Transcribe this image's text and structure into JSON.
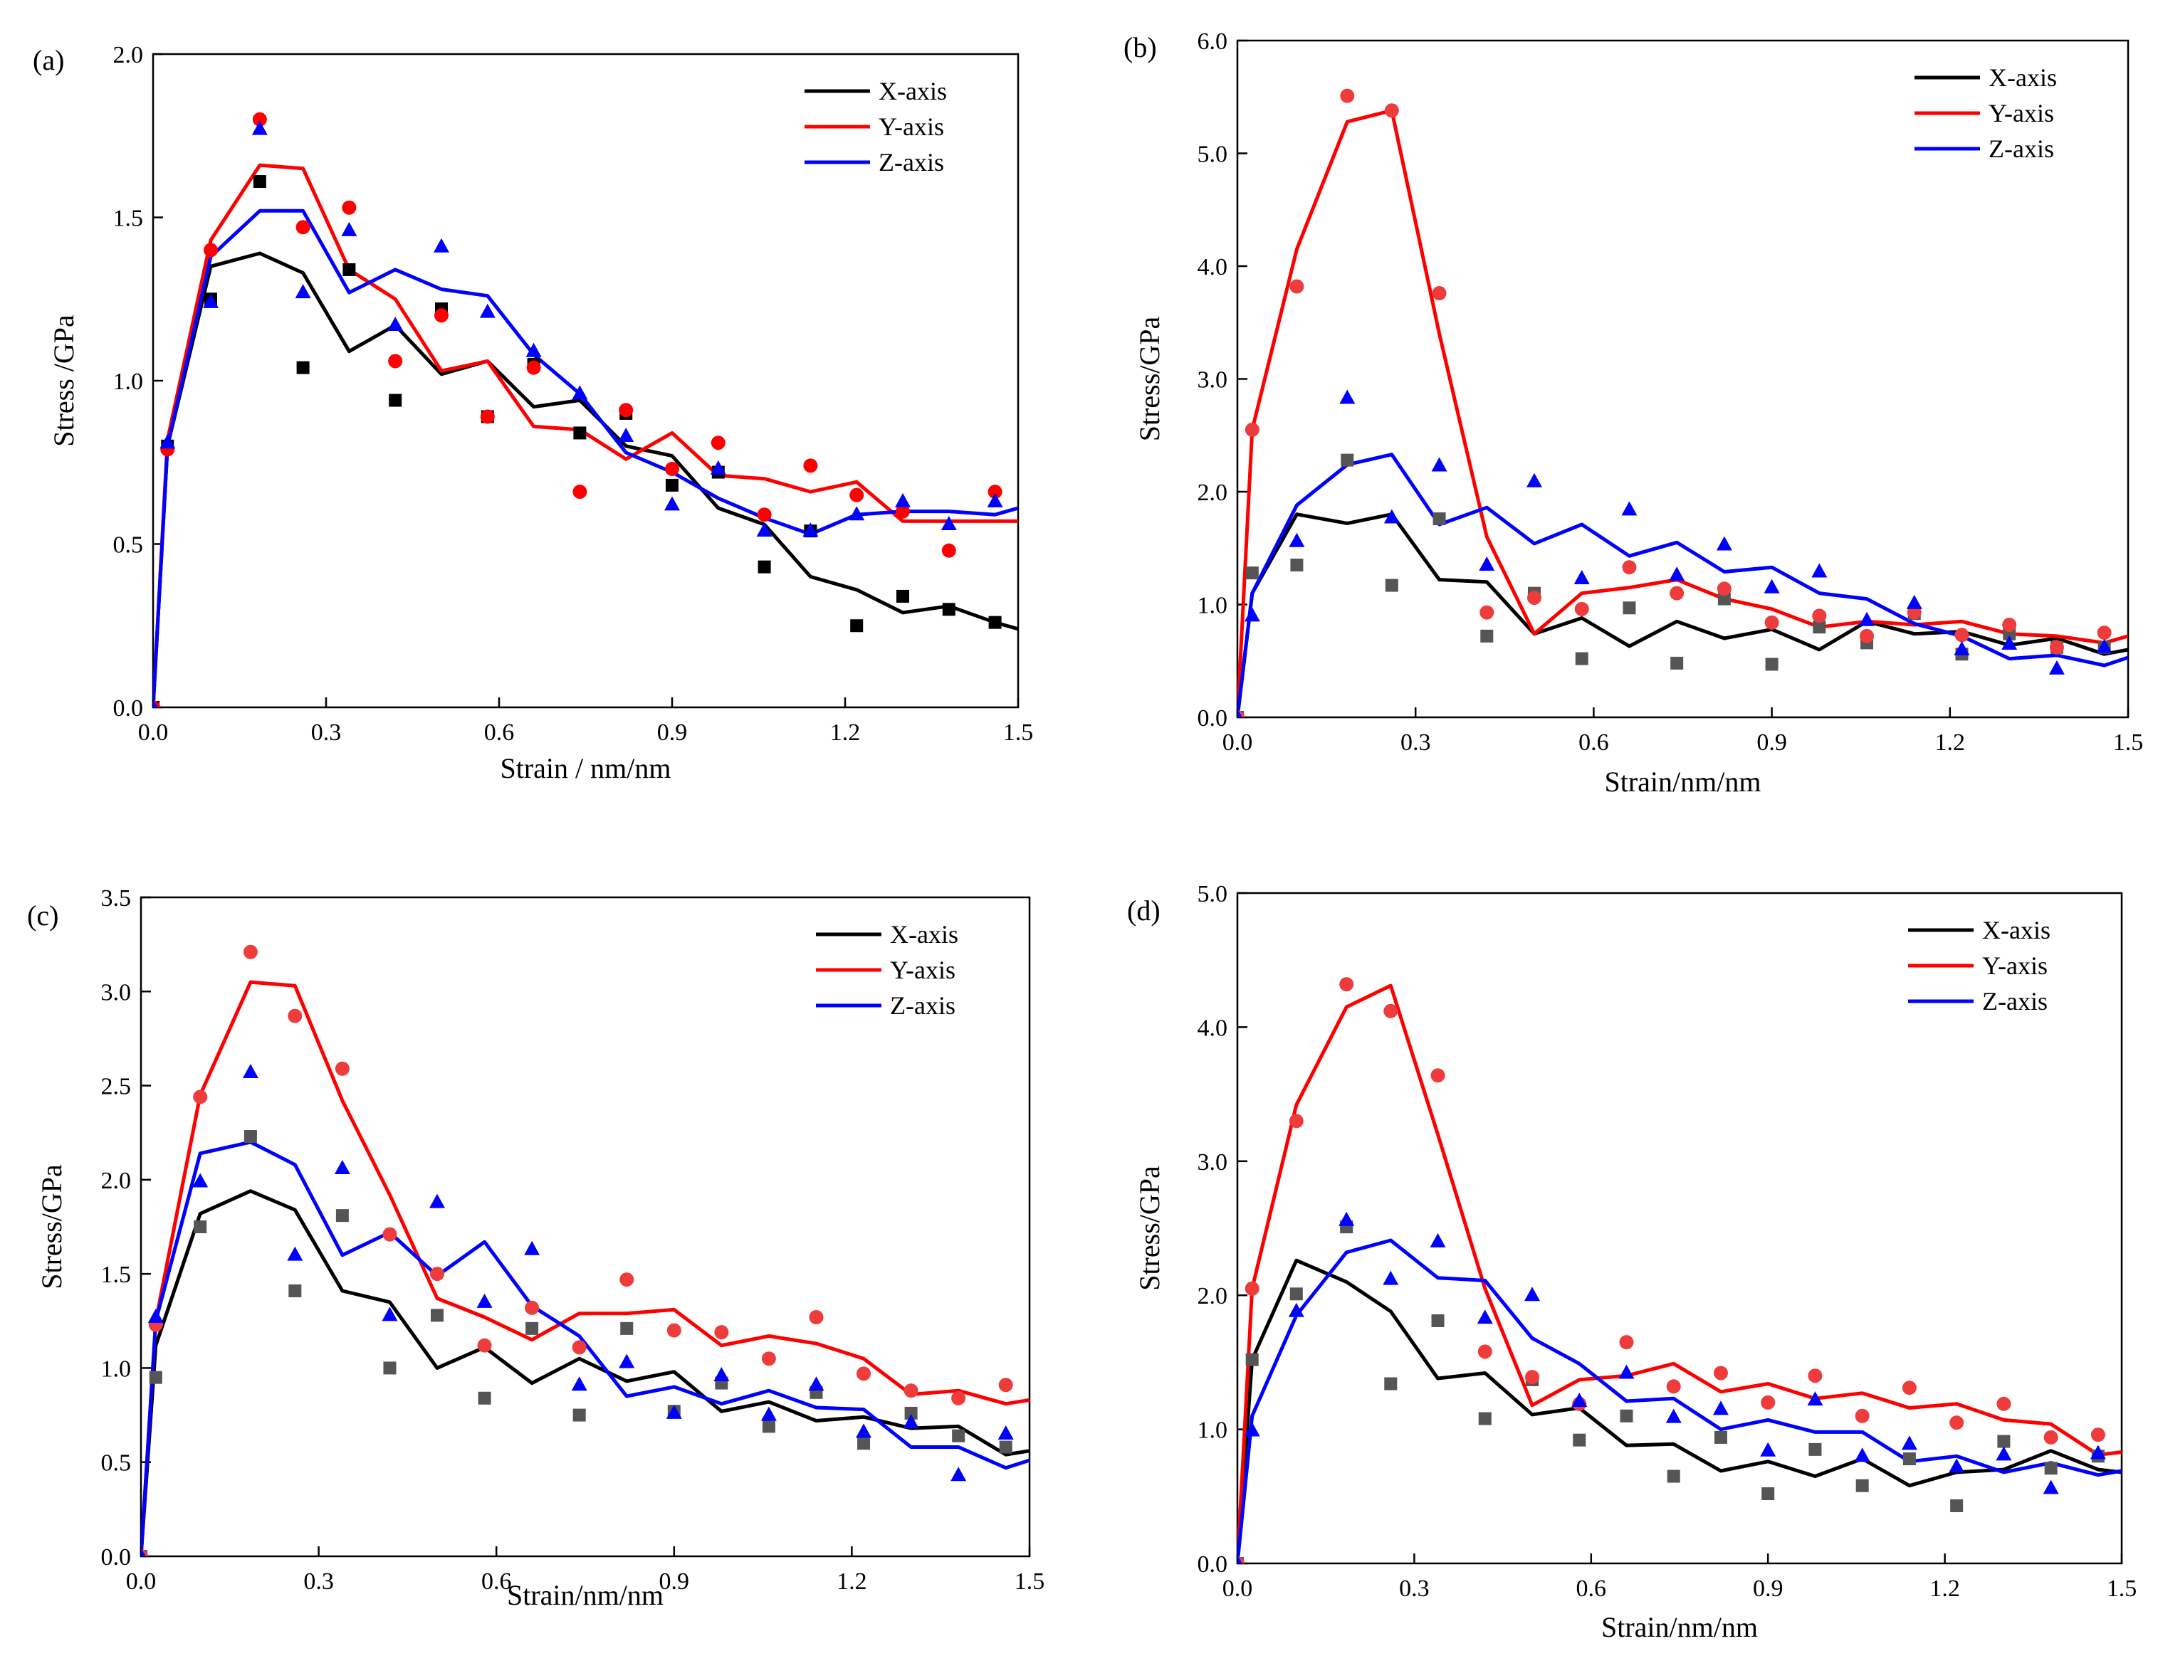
{
  "figure": {
    "series_colors": {
      "X-axis": "#000000",
      "Y-axis": "#ff0000",
      "Z-axis": "#0000ff"
    },
    "marker_colors": {
      "X-axis": "#000000",
      "Y-axis": "#ff0000",
      "Z-axis": "#0000ff"
    },
    "marker_colors_muted": {
      "X-axis": "#555555",
      "Y-axis": "#ee3b3b",
      "Z-axis": "#0000ff"
    }
  },
  "chart_data": [
    {
      "type": "line",
      "panel_label": "(a)",
      "title": "",
      "xlabel": "Strain / nm/nm",
      "ylabel": "Stress /GPa",
      "xlim": [
        0,
        1.5
      ],
      "ylim": [
        0,
        2.0
      ],
      "xticks": [
        "0.0",
        "0.3",
        "0.6",
        "0.9",
        "1.2",
        "1.5"
      ],
      "yticks": [
        "0.0",
        "0.5",
        "1.0",
        "1.5",
        "2.0"
      ],
      "legend_position": "top-right",
      "muted_markers": false,
      "x": [
        0.0,
        0.025,
        0.1,
        0.185,
        0.26,
        0.34,
        0.42,
        0.5,
        0.58,
        0.66,
        0.74,
        0.82,
        0.9,
        0.98,
        1.06,
        1.14,
        1.22,
        1.3,
        1.38,
        1.46,
        1.5
      ],
      "series": [
        {
          "name": "X-axis",
          "values": [
            0.0,
            0.8,
            1.35,
            1.39,
            1.33,
            1.09,
            1.17,
            1.02,
            1.06,
            0.92,
            0.94,
            0.8,
            0.77,
            0.61,
            0.56,
            0.4,
            0.36,
            0.29,
            0.31,
            0.26,
            0.24
          ],
          "markers_x": [
            0.0,
            0.025,
            0.1,
            0.185,
            0.26,
            0.34,
            0.42,
            0.5,
            0.58,
            0.66,
            0.74,
            0.82,
            0.9,
            0.98,
            1.06,
            1.14,
            1.22,
            1.3,
            1.38,
            1.46
          ],
          "markers": [
            0.0,
            0.8,
            1.25,
            1.61,
            1.04,
            1.34,
            0.94,
            1.22,
            0.89,
            1.05,
            0.84,
            0.9,
            0.68,
            0.72,
            0.43,
            0.54,
            0.25,
            0.34,
            0.3,
            0.26
          ]
        },
        {
          "name": "Y-axis",
          "values": [
            0.0,
            0.82,
            1.43,
            1.66,
            1.65,
            1.34,
            1.25,
            1.03,
            1.06,
            0.86,
            0.85,
            0.76,
            0.84,
            0.71,
            0.7,
            0.66,
            0.69,
            0.57,
            0.57,
            0.57,
            0.57
          ],
          "markers_x": [
            0.0,
            0.025,
            0.1,
            0.185,
            0.26,
            0.34,
            0.42,
            0.5,
            0.58,
            0.66,
            0.74,
            0.82,
            0.9,
            0.98,
            1.06,
            1.14,
            1.22,
            1.3,
            1.38,
            1.46
          ],
          "markers": [
            0.0,
            0.79,
            1.4,
            1.8,
            1.47,
            1.53,
            1.06,
            1.2,
            0.89,
            1.04,
            0.66,
            0.91,
            0.73,
            0.81,
            0.59,
            0.74,
            0.65,
            0.6,
            0.48,
            0.66
          ]
        },
        {
          "name": "Z-axis",
          "values": [
            0.0,
            0.8,
            1.38,
            1.52,
            1.52,
            1.27,
            1.34,
            1.28,
            1.26,
            1.08,
            0.96,
            0.78,
            0.72,
            0.64,
            0.58,
            0.53,
            0.59,
            0.6,
            0.6,
            0.59,
            0.61
          ],
          "markers_x": [
            0.0,
            0.025,
            0.1,
            0.185,
            0.26,
            0.34,
            0.42,
            0.5,
            0.58,
            0.66,
            0.74,
            0.82,
            0.9,
            0.98,
            1.06,
            1.14,
            1.22,
            1.3,
            1.38,
            1.46
          ],
          "markers": [
            0.0,
            0.81,
            1.24,
            1.77,
            1.27,
            1.46,
            1.17,
            1.41,
            1.21,
            1.09,
            0.96,
            0.83,
            0.62,
            0.73,
            0.54,
            0.54,
            0.59,
            0.63,
            0.56,
            0.63
          ]
        }
      ]
    },
    {
      "type": "line",
      "panel_label": "(b)",
      "title": "",
      "xlabel": "Strain/nm/nm",
      "ylabel": "Stress/GPa",
      "xlim": [
        0,
        1.5
      ],
      "ylim": [
        0,
        6.0
      ],
      "xticks": [
        "0.0",
        "0.3",
        "0.6",
        "0.9",
        "1.2",
        "1.5"
      ],
      "yticks": [
        "0.0",
        "1.0",
        "2.0",
        "3.0",
        "4.0",
        "5.0",
        "6.0"
      ],
      "legend_position": "top-right",
      "muted_markers": true,
      "x": [
        0.0,
        0.025,
        0.1,
        0.185,
        0.26,
        0.34,
        0.42,
        0.5,
        0.58,
        0.66,
        0.74,
        0.82,
        0.9,
        0.98,
        1.06,
        1.14,
        1.22,
        1.3,
        1.38,
        1.46,
        1.5
      ],
      "series": [
        {
          "name": "X-axis",
          "values": [
            0.0,
            1.1,
            1.8,
            1.72,
            1.8,
            1.22,
            1.2,
            0.74,
            0.88,
            0.63,
            0.85,
            0.7,
            0.78,
            0.6,
            0.85,
            0.74,
            0.76,
            0.64,
            0.7,
            0.56,
            0.6
          ],
          "markers_x": [
            0.0,
            0.025,
            0.1,
            0.185,
            0.26,
            0.34,
            0.42,
            0.5,
            0.58,
            0.66,
            0.74,
            0.82,
            0.9,
            0.98,
            1.06,
            1.14,
            1.22,
            1.3,
            1.38,
            1.46
          ],
          "markers": [
            0.0,
            1.28,
            1.35,
            2.28,
            1.17,
            1.76,
            0.72,
            1.1,
            0.52,
            0.97,
            0.48,
            1.05,
            0.47,
            0.8,
            0.66,
            0.92,
            0.56,
            0.74,
            0.62,
            0.62
          ]
        },
        {
          "name": "Y-axis",
          "values": [
            0.0,
            2.55,
            4.15,
            5.28,
            5.38,
            3.4,
            1.6,
            0.74,
            1.1,
            1.15,
            1.22,
            1.05,
            0.96,
            0.8,
            0.85,
            0.82,
            0.85,
            0.74,
            0.72,
            0.66,
            0.72
          ],
          "markers_x": [
            0.0,
            0.025,
            0.1,
            0.185,
            0.26,
            0.34,
            0.42,
            0.5,
            0.58,
            0.66,
            0.74,
            0.82,
            0.9,
            0.98,
            1.06,
            1.14,
            1.22,
            1.3,
            1.38,
            1.46
          ],
          "markers": [
            0.0,
            2.55,
            3.82,
            5.51,
            5.38,
            3.76,
            0.93,
            1.06,
            0.96,
            1.33,
            1.1,
            1.14,
            0.84,
            0.9,
            0.72,
            0.93,
            0.73,
            0.82,
            0.62,
            0.75
          ]
        },
        {
          "name": "Z-axis",
          "values": [
            0.0,
            1.1,
            1.88,
            2.24,
            2.33,
            1.71,
            1.86,
            1.54,
            1.71,
            1.43,
            1.55,
            1.29,
            1.33,
            1.1,
            1.05,
            0.83,
            0.72,
            0.52,
            0.55,
            0.46,
            0.53
          ],
          "markers_x": [
            0.0,
            0.025,
            0.1,
            0.185,
            0.26,
            0.34,
            0.42,
            0.5,
            0.58,
            0.66,
            0.74,
            0.82,
            0.9,
            0.98,
            1.06,
            1.14,
            1.22,
            1.3,
            1.38,
            1.46
          ],
          "markers": [
            0.0,
            0.9,
            1.56,
            2.83,
            1.77,
            2.23,
            1.35,
            2.09,
            1.23,
            1.84,
            1.26,
            1.53,
            1.15,
            1.29,
            0.86,
            1.01,
            0.6,
            0.65,
            0.43,
            0.62
          ]
        }
      ]
    },
    {
      "type": "line",
      "panel_label": "(c)",
      "title": "",
      "xlabel": "Strain/nm/nm",
      "ylabel": "Stress/GPa",
      "xlim": [
        0,
        1.5
      ],
      "ylim": [
        0,
        3.5
      ],
      "xticks": [
        "0.0",
        "0.3",
        "0.6",
        "0.9",
        "1.2",
        "1.5"
      ],
      "yticks": [
        "0.0",
        "0.5",
        "1.0",
        "1.5",
        "2.0",
        "2.5",
        "3.0",
        "3.5"
      ],
      "legend_position": "top-right",
      "muted_markers": true,
      "x": [
        0.0,
        0.025,
        0.1,
        0.185,
        0.26,
        0.34,
        0.42,
        0.5,
        0.58,
        0.66,
        0.74,
        0.82,
        0.9,
        0.98,
        1.06,
        1.14,
        1.22,
        1.3,
        1.38,
        1.46,
        1.5
      ],
      "series": [
        {
          "name": "X-axis",
          "values": [
            0.0,
            1.12,
            1.82,
            1.94,
            1.84,
            1.41,
            1.35,
            1.0,
            1.11,
            0.92,
            1.05,
            0.93,
            0.98,
            0.77,
            0.82,
            0.72,
            0.74,
            0.68,
            0.69,
            0.54,
            0.56
          ],
          "markers_x": [
            0.0,
            0.025,
            0.1,
            0.185,
            0.26,
            0.34,
            0.42,
            0.5,
            0.58,
            0.66,
            0.74,
            0.82,
            0.9,
            0.98,
            1.06,
            1.14,
            1.22,
            1.3,
            1.38,
            1.46
          ],
          "markers": [
            0.0,
            0.95,
            1.75,
            2.23,
            1.41,
            1.81,
            1.0,
            1.28,
            0.84,
            1.21,
            0.75,
            1.21,
            0.77,
            0.92,
            0.69,
            0.87,
            0.6,
            0.76,
            0.64,
            0.58
          ]
        },
        {
          "name": "Y-axis",
          "values": [
            0.0,
            1.25,
            2.45,
            3.05,
            3.03,
            2.42,
            1.92,
            1.37,
            1.27,
            1.15,
            1.29,
            1.29,
            1.31,
            1.12,
            1.17,
            1.13,
            1.05,
            0.86,
            0.88,
            0.81,
            0.83
          ],
          "markers_x": [
            0.0,
            0.025,
            0.1,
            0.185,
            0.26,
            0.34,
            0.42,
            0.5,
            0.58,
            0.66,
            0.74,
            0.82,
            0.9,
            0.98,
            1.06,
            1.14,
            1.22,
            1.3,
            1.38,
            1.46
          ],
          "markers": [
            0.0,
            1.23,
            2.44,
            3.21,
            2.87,
            2.59,
            1.71,
            1.5,
            1.12,
            1.32,
            1.11,
            1.47,
            1.2,
            1.19,
            1.05,
            1.27,
            0.97,
            0.88,
            0.84,
            0.91
          ]
        },
        {
          "name": "Z-axis",
          "values": [
            0.0,
            1.25,
            2.14,
            2.2,
            2.08,
            1.6,
            1.72,
            1.49,
            1.67,
            1.33,
            1.17,
            0.85,
            0.9,
            0.81,
            0.88,
            0.79,
            0.78,
            0.58,
            0.58,
            0.47,
            0.51
          ],
          "markers_x": [
            0.0,
            0.025,
            0.1,
            0.185,
            0.26,
            0.34,
            0.42,
            0.5,
            0.58,
            0.66,
            0.74,
            0.82,
            0.9,
            0.98,
            1.06,
            1.14,
            1.22,
            1.3,
            1.38,
            1.46
          ],
          "markers": [
            0.0,
            1.27,
            1.99,
            2.57,
            1.6,
            2.06,
            1.28,
            1.88,
            1.35,
            1.63,
            0.91,
            1.03,
            0.76,
            0.96,
            0.75,
            0.91,
            0.66,
            0.71,
            0.43,
            0.65
          ]
        }
      ]
    },
    {
      "type": "line",
      "panel_label": "(d)",
      "title": "",
      "xlabel": "Strain/nm/nm",
      "ylabel": "Stress/GPa",
      "xlim": [
        0,
        1.5
      ],
      "ylim": [
        0,
        5.0
      ],
      "xticks": [
        "0.0",
        "0.3",
        "0.6",
        "0.9",
        "1.2",
        "1.5"
      ],
      "yticks": [
        "0.0",
        "1.0",
        "2.0",
        "3.0",
        "4.0",
        "5.0"
      ],
      "legend_position": "top-right",
      "muted_markers": true,
      "x": [
        0.0,
        0.025,
        0.1,
        0.185,
        0.26,
        0.34,
        0.42,
        0.5,
        0.58,
        0.66,
        0.74,
        0.82,
        0.9,
        0.98,
        1.06,
        1.14,
        1.22,
        1.3,
        1.38,
        1.46,
        1.5
      ],
      "series": [
        {
          "name": "X-axis",
          "values": [
            0.0,
            1.52,
            2.26,
            2.1,
            1.88,
            1.38,
            1.42,
            1.11,
            1.16,
            0.88,
            0.89,
            0.69,
            0.76,
            0.65,
            0.78,
            0.58,
            0.68,
            0.7,
            0.84,
            0.7,
            0.68
          ],
          "markers_x": [
            0.0,
            0.025,
            0.1,
            0.185,
            0.26,
            0.34,
            0.42,
            0.5,
            0.58,
            0.66,
            0.74,
            0.82,
            0.9,
            0.98,
            1.06,
            1.14,
            1.22,
            1.3,
            1.38,
            1.46
          ],
          "markers": [
            0.0,
            1.52,
            2.01,
            2.51,
            1.34,
            1.81,
            1.08,
            1.37,
            0.92,
            1.1,
            0.65,
            0.94,
            0.52,
            0.85,
            0.58,
            0.78,
            0.43,
            0.91,
            0.71,
            0.8
          ]
        },
        {
          "name": "Y-axis",
          "values": [
            0.0,
            2.05,
            3.42,
            4.15,
            4.31,
            3.2,
            2.05,
            1.18,
            1.37,
            1.4,
            1.49,
            1.28,
            1.34,
            1.23,
            1.27,
            1.16,
            1.19,
            1.07,
            1.04,
            0.81,
            0.83
          ],
          "markers_x": [
            0.0,
            0.025,
            0.1,
            0.185,
            0.26,
            0.34,
            0.42,
            0.5,
            0.58,
            0.66,
            0.74,
            0.82,
            0.9,
            0.98,
            1.06,
            1.14,
            1.22,
            1.3,
            1.38,
            1.46
          ],
          "markers": [
            0.0,
            2.05,
            3.3,
            4.32,
            4.12,
            3.64,
            1.58,
            1.39,
            1.19,
            1.65,
            1.32,
            1.42,
            1.2,
            1.4,
            1.1,
            1.31,
            1.05,
            1.19,
            0.94,
            0.96
          ]
        },
        {
          "name": "Z-axis",
          "values": [
            0.0,
            1.1,
            1.85,
            2.32,
            2.41,
            2.13,
            2.11,
            1.68,
            1.49,
            1.21,
            1.23,
            1.0,
            1.07,
            0.98,
            0.98,
            0.76,
            0.8,
            0.68,
            0.75,
            0.66,
            0.69
          ],
          "markers_x": [
            0.0,
            0.025,
            0.1,
            0.185,
            0.26,
            0.34,
            0.42,
            0.5,
            0.58,
            0.66,
            0.74,
            0.82,
            0.9,
            0.98,
            1.06,
            1.14,
            1.22,
            1.3,
            1.38,
            1.46
          ],
          "markers": [
            0.0,
            0.99,
            1.88,
            2.56,
            2.12,
            2.4,
            1.83,
            2.0,
            1.21,
            1.42,
            1.09,
            1.15,
            0.84,
            1.22,
            0.8,
            0.89,
            0.72,
            0.81,
            0.56,
            0.82
          ]
        }
      ]
    }
  ]
}
